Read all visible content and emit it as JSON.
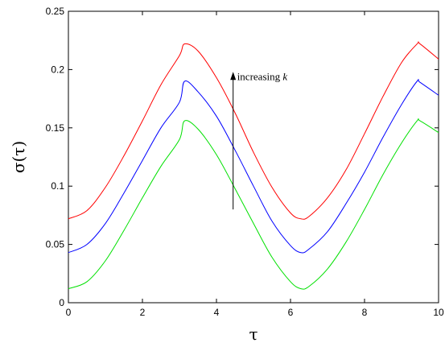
{
  "chart_data": {
    "type": "line",
    "title": "",
    "xlabel": "τ",
    "ylabel": "σ(τ)",
    "xlim": [
      0,
      10
    ],
    "ylim": [
      0,
      0.25
    ],
    "xticks": [
      "0",
      "2",
      "4",
      "6",
      "8",
      "10"
    ],
    "yticks": [
      "0",
      "0.05",
      "0.1",
      "0.15",
      "0.2",
      "0.25"
    ],
    "grid": false,
    "legend": "none",
    "x": [
      0,
      0.5,
      1,
      1.5,
      2,
      2.5,
      3,
      3.14,
      3.5,
      4,
      4.5,
      5,
      5.5,
      6,
      6.28,
      6.5,
      7,
      7.5,
      8,
      8.5,
      9,
      9.42,
      9.5,
      10
    ],
    "series": [
      {
        "color": "#ff0000",
        "values": [
          0.072,
          0.079,
          0.099,
          0.126,
          0.156,
          0.187,
          0.212,
          0.222,
          0.216,
          0.193,
          0.163,
          0.129,
          0.099,
          0.077,
          0.072,
          0.074,
          0.09,
          0.114,
          0.145,
          0.177,
          0.206,
          0.222,
          0.222,
          0.209
        ]
      },
      {
        "color": "#0000ff",
        "values": [
          0.043,
          0.05,
          0.068,
          0.094,
          0.122,
          0.15,
          0.172,
          0.19,
          0.181,
          0.16,
          0.131,
          0.1,
          0.07,
          0.049,
          0.043,
          0.046,
          0.061,
          0.085,
          0.112,
          0.142,
          0.17,
          0.19,
          0.189,
          0.178
        ]
      },
      {
        "color": "#00e000",
        "values": [
          0.012,
          0.018,
          0.036,
          0.062,
          0.09,
          0.117,
          0.14,
          0.156,
          0.149,
          0.127,
          0.098,
          0.068,
          0.039,
          0.018,
          0.012,
          0.014,
          0.029,
          0.052,
          0.08,
          0.11,
          0.137,
          0.156,
          0.156,
          0.146
        ]
      }
    ],
    "annotation": {
      "text": "increasing ",
      "italic_text": "k",
      "arrow": {
        "x": 4.45,
        "y_from": 0.08,
        "y_to": 0.198
      }
    }
  }
}
